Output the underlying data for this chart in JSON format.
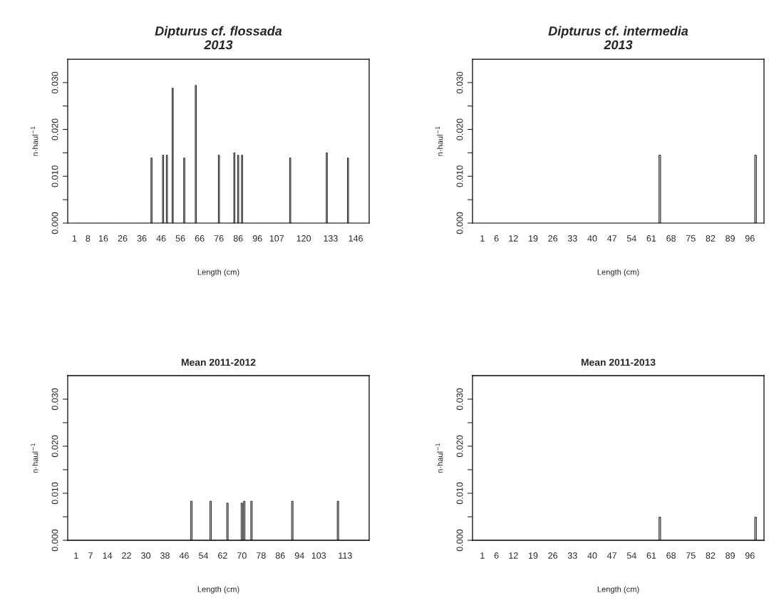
{
  "chart_data": [
    {
      "type": "bar",
      "title": "Dipturus cf. flossada\n2013",
      "xlabel": "Length (cm)",
      "ylabel": "n·haul$^{−1}$",
      "color": "#c0c0c0",
      "ylim": [
        0,
        0.035
      ],
      "yticks": [
        {
          "value": 0,
          "label": "0.000"
        },
        {
          "value": 0.005,
          "label": null
        },
        {
          "value": 0.01,
          "label": "0.010"
        },
        {
          "value": 0.015,
          "label": null
        },
        {
          "value": 0.02,
          "label": "0.020"
        },
        {
          "value": 0.025,
          "label": null
        },
        {
          "value": 0.03,
          "label": "0.030"
        }
      ],
      "categories": [
        "1",
        null,
        null,
        null,
        null,
        null,
        null,
        "8",
        null,
        null,
        null,
        null,
        null,
        null,
        null,
        "16",
        null,
        null,
        null,
        null,
        null,
        null,
        null,
        null,
        null,
        "26",
        null,
        null,
        null,
        null,
        null,
        null,
        null,
        null,
        null,
        "36",
        null,
        null,
        null,
        null,
        null,
        null,
        null,
        null,
        null,
        "46",
        null,
        null,
        null,
        null,
        null,
        null,
        null,
        null,
        null,
        "56",
        null,
        null,
        null,
        null,
        null,
        null,
        null,
        null,
        null,
        "66",
        null,
        null,
        null,
        null,
        null,
        null,
        null,
        null,
        null,
        "76",
        null,
        null,
        null,
        null,
        null,
        null,
        null,
        null,
        null,
        "86",
        null,
        null,
        null,
        null,
        null,
        null,
        null,
        null,
        null,
        "96",
        null,
        null,
        null,
        null,
        null,
        null,
        null,
        null,
        null,
        "107",
        null,
        null,
        null,
        null,
        null,
        null,
        null,
        null,
        null,
        null,
        null,
        null,
        null,
        "120",
        null,
        null,
        null,
        null,
        null,
        null,
        null,
        null,
        null,
        null,
        null,
        null,
        null,
        "133",
        null,
        null,
        null,
        null,
        null,
        null,
        null,
        null,
        null,
        null,
        null,
        null,
        "146",
        null,
        null,
        null,
        null
      ],
      "values": [
        0,
        0,
        0,
        0,
        0,
        0,
        0,
        0,
        0,
        0,
        0,
        0,
        0,
        0,
        0,
        0,
        0,
        0,
        0,
        0,
        0,
        0,
        0,
        0,
        0,
        0,
        0,
        0,
        0,
        0,
        0,
        0,
        0,
        0,
        0,
        0,
        0,
        0,
        0,
        0,
        0.0139,
        0,
        0,
        0,
        0,
        0,
        0.0145,
        0,
        0.0145,
        0,
        0,
        0.0288,
        0,
        0,
        0,
        0,
        0,
        0.0139,
        0,
        0,
        0,
        0,
        0,
        0.0294,
        0,
        0,
        0,
        0,
        0,
        0,
        0,
        0,
        0,
        0,
        0,
        0.0145,
        0,
        0,
        0,
        0,
        0,
        0,
        0,
        0.015,
        0,
        0.0145,
        0,
        0.0145,
        0,
        0,
        0,
        0,
        0,
        0,
        0,
        0,
        0,
        0,
        0,
        0,
        0,
        0,
        0,
        0,
        0,
        0,
        0,
        0,
        0,
        0,
        0,
        0,
        0.0139,
        0,
        0,
        0,
        0,
        0,
        0,
        0,
        0,
        0,
        0,
        0,
        0,
        0,
        0,
        0,
        0,
        0,
        0,
        0.015,
        0,
        0,
        0,
        0,
        0,
        0,
        0,
        0,
        0,
        0,
        0.0139,
        0,
        0,
        0,
        0,
        0,
        0,
        0,
        0
      ]
    },
    {
      "type": "bar",
      "title": "Dipturus cf. intermedia\n2013",
      "xlabel": "Length (cm)",
      "ylabel": "n·haul$^{−1}$",
      "color": "#c0c0c0",
      "ylim": [
        0,
        0.035
      ],
      "yticks": [
        {
          "value": 0,
          "label": "0.000"
        },
        {
          "value": 0.005,
          "label": null
        },
        {
          "value": 0.01,
          "label": "0.010"
        },
        {
          "value": 0.015,
          "label": null
        },
        {
          "value": 0.02,
          "label": "0.020"
        },
        {
          "value": 0.025,
          "label": null
        },
        {
          "value": 0.03,
          "label": "0.030"
        }
      ],
      "categories": [
        "1",
        null,
        null,
        null,
        null,
        "6",
        null,
        null,
        null,
        null,
        null,
        "12",
        null,
        null,
        null,
        null,
        null,
        null,
        "19",
        null,
        null,
        null,
        null,
        null,
        null,
        "26",
        null,
        null,
        null,
        null,
        null,
        null,
        "33",
        null,
        null,
        null,
        null,
        null,
        null,
        "40",
        null,
        null,
        null,
        null,
        null,
        null,
        "47",
        null,
        null,
        null,
        null,
        null,
        null,
        "54",
        null,
        null,
        null,
        null,
        null,
        null,
        "61",
        null,
        null,
        null,
        null,
        null,
        null,
        "68",
        null,
        null,
        null,
        null,
        null,
        null,
        "75",
        null,
        null,
        null,
        null,
        null,
        null,
        "82",
        null,
        null,
        null,
        null,
        null,
        null,
        "89",
        null,
        null,
        null,
        null,
        null,
        null,
        "96",
        null,
        null
      ],
      "values": [
        0,
        0,
        0,
        0,
        0,
        0,
        0,
        0,
        0,
        0,
        0,
        0,
        0,
        0,
        0,
        0,
        0,
        0,
        0,
        0,
        0,
        0,
        0,
        0,
        0,
        0,
        0,
        0,
        0,
        0,
        0,
        0,
        0,
        0,
        0,
        0,
        0,
        0,
        0,
        0,
        0,
        0,
        0,
        0,
        0,
        0,
        0,
        0,
        0,
        0,
        0,
        0,
        0,
        0,
        0,
        0,
        0,
        0,
        0,
        0,
        0,
        0,
        0,
        0.0145,
        0,
        0,
        0,
        0,
        0,
        0,
        0,
        0,
        0,
        0,
        0,
        0,
        0,
        0,
        0,
        0,
        0,
        0,
        0,
        0,
        0,
        0,
        0,
        0,
        0,
        0,
        0,
        0,
        0,
        0,
        0,
        0,
        0,
        0.0145
      ]
    },
    {
      "type": "bar",
      "title": "Mean 2011-2012",
      "xlabel": "Length (cm)",
      "ylabel": "n·haul$^{−1}$",
      "color": "#c0c0c0",
      "ylim": [
        0,
        0.035
      ],
      "yticks": [
        {
          "value": 0,
          "label": "0.000"
        },
        {
          "value": 0.005,
          "label": null
        },
        {
          "value": 0.01,
          "label": "0.010"
        },
        {
          "value": 0.015,
          "label": null
        },
        {
          "value": 0.02,
          "label": "0.020"
        },
        {
          "value": 0.025,
          "label": null
        },
        {
          "value": 0.03,
          "label": "0.030"
        }
      ],
      "categories": [
        "1",
        null,
        null,
        null,
        null,
        null,
        "7",
        null,
        null,
        null,
        null,
        null,
        null,
        "14",
        null,
        null,
        null,
        null,
        null,
        null,
        null,
        "22",
        null,
        null,
        null,
        null,
        null,
        null,
        null,
        "30",
        null,
        null,
        null,
        null,
        null,
        null,
        null,
        "38",
        null,
        null,
        null,
        null,
        null,
        null,
        null,
        "46",
        null,
        null,
        null,
        null,
        null,
        null,
        null,
        "54",
        null,
        null,
        null,
        null,
        null,
        null,
        null,
        "62",
        null,
        null,
        null,
        null,
        null,
        null,
        null,
        "70",
        null,
        null,
        null,
        null,
        null,
        null,
        null,
        "78",
        null,
        null,
        null,
        null,
        null,
        null,
        null,
        "86",
        null,
        null,
        null,
        null,
        null,
        null,
        null,
        "94",
        null,
        null,
        null,
        null,
        null,
        null,
        null,
        "103",
        null,
        null,
        null,
        null,
        null,
        null,
        null,
        null,
        null,
        null,
        "113",
        null,
        null,
        null,
        null,
        null,
        null,
        null
      ],
      "values": [
        0,
        0,
        0,
        0,
        0,
        0,
        0,
        0,
        0,
        0,
        0,
        0,
        0,
        0,
        0,
        0,
        0,
        0,
        0,
        0,
        0,
        0,
        0,
        0,
        0,
        0,
        0,
        0,
        0,
        0,
        0,
        0,
        0,
        0,
        0,
        0,
        0,
        0,
        0,
        0,
        0,
        0,
        0,
        0,
        0,
        0,
        0,
        0,
        0.0083,
        0,
        0,
        0,
        0,
        0,
        0,
        0,
        0.0083,
        0,
        0,
        0,
        0,
        0,
        0,
        0.0079,
        0,
        0,
        0,
        0,
        0,
        0.0079,
        0.0083,
        0,
        0,
        0.0083,
        0,
        0,
        0,
        0,
        0,
        0,
        0,
        0,
        0,
        0,
        0,
        0,
        0,
        0,
        0,
        0,
        0.0083,
        0,
        0,
        0,
        0,
        0,
        0,
        0,
        0,
        0,
        0,
        0,
        0,
        0,
        0,
        0,
        0,
        0,
        0,
        0.0083,
        0,
        0,
        0,
        0,
        0,
        0,
        0,
        0,
        0,
        0
      ]
    },
    {
      "type": "bar",
      "title": "Mean 2011-2013",
      "xlabel": "Length (cm)",
      "ylabel": "n·haul$^{−1}$",
      "color": "#c0c0c0",
      "ylim": [
        0,
        0.035
      ],
      "yticks": [
        {
          "value": 0,
          "label": "0.000"
        },
        {
          "value": 0.005,
          "label": null
        },
        {
          "value": 0.01,
          "label": "0.010"
        },
        {
          "value": 0.015,
          "label": null
        },
        {
          "value": 0.02,
          "label": "0.020"
        },
        {
          "value": 0.025,
          "label": null
        },
        {
          "value": 0.03,
          "label": "0.030"
        }
      ],
      "categories": [
        "1",
        null,
        null,
        null,
        null,
        "6",
        null,
        null,
        null,
        null,
        null,
        "12",
        null,
        null,
        null,
        null,
        null,
        null,
        "19",
        null,
        null,
        null,
        null,
        null,
        null,
        "26",
        null,
        null,
        null,
        null,
        null,
        null,
        "33",
        null,
        null,
        null,
        null,
        null,
        null,
        "40",
        null,
        null,
        null,
        null,
        null,
        null,
        "47",
        null,
        null,
        null,
        null,
        null,
        null,
        "54",
        null,
        null,
        null,
        null,
        null,
        null,
        "61",
        null,
        null,
        null,
        null,
        null,
        null,
        "68",
        null,
        null,
        null,
        null,
        null,
        null,
        "75",
        null,
        null,
        null,
        null,
        null,
        null,
        "82",
        null,
        null,
        null,
        null,
        null,
        null,
        "89",
        null,
        null,
        null,
        null,
        null,
        null,
        "96",
        null,
        null
      ],
      "values": [
        0,
        0,
        0,
        0,
        0,
        0,
        0,
        0,
        0,
        0,
        0,
        0,
        0,
        0,
        0,
        0,
        0,
        0,
        0,
        0,
        0,
        0,
        0,
        0,
        0,
        0,
        0,
        0,
        0,
        0,
        0,
        0,
        0,
        0,
        0,
        0,
        0,
        0,
        0,
        0,
        0,
        0,
        0,
        0,
        0,
        0,
        0,
        0,
        0,
        0,
        0,
        0,
        0,
        0,
        0,
        0,
        0,
        0,
        0,
        0,
        0,
        0,
        0,
        0.0049,
        0,
        0,
        0,
        0,
        0,
        0,
        0,
        0,
        0,
        0,
        0,
        0,
        0,
        0,
        0,
        0,
        0,
        0,
        0,
        0,
        0,
        0,
        0,
        0,
        0,
        0,
        0,
        0,
        0,
        0,
        0,
        0,
        0,
        0.0049
      ]
    }
  ]
}
